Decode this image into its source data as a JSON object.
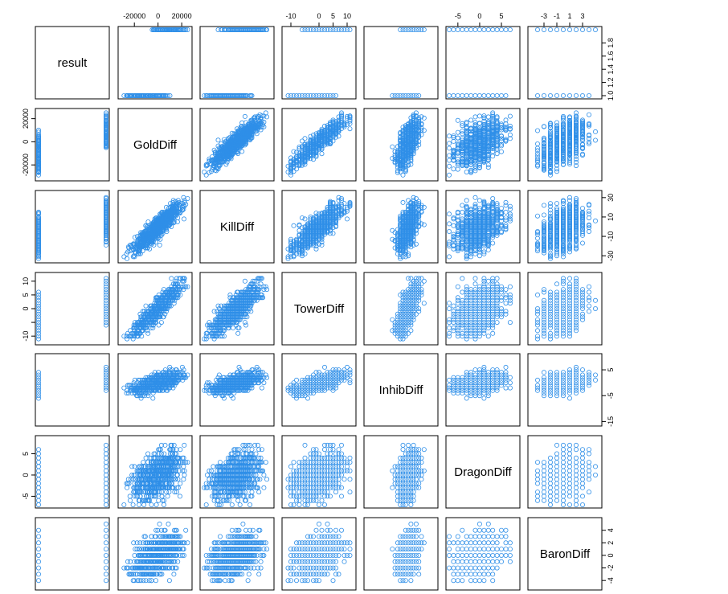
{
  "chart_data": {
    "type": "scatter",
    "subtype": "scatterplot-matrix",
    "marker": "open-circle",
    "point_color": "#2f8fe8",
    "variables": [
      {
        "name": "result",
        "range": [
          1,
          2
        ],
        "ticks": [
          1.0,
          1.2,
          1.4,
          1.6,
          1.8
        ],
        "tick_labels": [
          "1.0",
          "1.2",
          "1.4",
          "1.6",
          "1.8"
        ],
        "discrete": true
      },
      {
        "name": "GoldDiff",
        "range": [
          -31000,
          26000
        ],
        "ticks": [
          -20000,
          0,
          20000
        ],
        "tick_labels": [
          "-20000",
          "0",
          "20000"
        ],
        "discrete": false
      },
      {
        "name": "KillDiff",
        "range": [
          -34,
          34
        ],
        "ticks": [
          -30,
          -10,
          10,
          30
        ],
        "tick_labels": [
          "-30",
          "-10",
          "10",
          "30"
        ],
        "discrete": false
      },
      {
        "name": "TowerDiff",
        "range": [
          -12,
          12
        ],
        "ticks": [
          -10,
          -5,
          0,
          5,
          10
        ],
        "tick_labels": [
          "-10",
          "",
          "0",
          "5",
          "10"
        ],
        "discrete": false
      },
      {
        "name": "InhibDiff",
        "range": [
          -15.5,
          10
        ],
        "ticks": [
          -15,
          -5,
          5
        ],
        "tick_labels": [
          "-15",
          "-5",
          "5"
        ],
        "discrete": false
      },
      {
        "name": "DragonDiff",
        "range": [
          -7,
          8.5
        ],
        "ticks": [
          -5,
          0,
          5
        ],
        "tick_labels": [
          "-5",
          "0",
          "5"
        ],
        "discrete": false
      },
      {
        "name": "BaronDiff",
        "range": [
          -5,
          5.5
        ],
        "ticks": [
          -4,
          -2,
          0,
          2,
          4
        ],
        "tick_labels": [
          "-4",
          "-2",
          "0",
          "2",
          "4"
        ],
        "discrete": false
      }
    ],
    "top_axis_labels": [
      {
        "var": "GoldDiff",
        "ticks": [
          -20000,
          0,
          20000
        ],
        "labels": [
          "-20000",
          "0",
          "20000"
        ]
      },
      {
        "var": "TowerDiff",
        "ticks": [
          -10,
          0,
          5,
          10
        ],
        "labels": [
          "-10",
          "0",
          "5",
          "10"
        ]
      },
      {
        "var": "DragonDiff",
        "ticks": [
          -5,
          0,
          5
        ],
        "labels": [
          "-5",
          "0",
          "5"
        ]
      },
      {
        "var": "BaronDiff",
        "ticks": [
          -3,
          -1,
          1,
          3
        ],
        "labels": [
          "-3",
          "-1",
          "1",
          "3"
        ]
      }
    ],
    "bottom_axis_labels": [],
    "left_axis_labels": [
      {
        "var": "GoldDiff",
        "ticks": [
          -20000,
          0,
          20000
        ],
        "labels": [
          "-20000",
          "0",
          "20000"
        ]
      },
      {
        "var": "TowerDiff",
        "ticks": [
          -10,
          -5,
          0,
          5,
          10
        ],
        "labels": [
          "-10",
          "",
          "0",
          "5",
          "10"
        ]
      },
      {
        "var": "DragonDiff",
        "ticks": [
          -5,
          0,
          5
        ],
        "labels": [
          "-5",
          "0",
          "5"
        ]
      }
    ],
    "right_axis_labels": [
      {
        "var": "result",
        "ticks": [
          1.0,
          1.2,
          1.4,
          1.6,
          1.8
        ],
        "labels": [
          "1.0",
          "1.2",
          "1.4",
          "1.6",
          "1.8"
        ]
      },
      {
        "var": "KillDiff",
        "ticks": [
          -30,
          -10,
          10,
          30
        ],
        "labels": [
          "-30",
          "-10",
          "10",
          "30"
        ]
      },
      {
        "var": "InhibDiff",
        "ticks": [
          -15,
          -5,
          5
        ],
        "labels": [
          "-15",
          "-5",
          "5"
        ]
      },
      {
        "var": "BaronDiff",
        "ticks": [
          -4,
          -2,
          0,
          2,
          4
        ],
        "labels": [
          "-4",
          "-2",
          "0",
          "2",
          "4"
        ]
      }
    ],
    "approx_correlations": {
      "GoldDiff|KillDiff": 0.9,
      "GoldDiff|TowerDiff": 0.88,
      "GoldDiff|InhibDiff": 0.55,
      "GoldDiff|DragonDiff": 0.45,
      "GoldDiff|BaronDiff": 0.55,
      "KillDiff|TowerDiff": 0.78,
      "KillDiff|InhibDiff": 0.45,
      "KillDiff|DragonDiff": 0.4,
      "KillDiff|BaronDiff": 0.5,
      "TowerDiff|InhibDiff": 0.75,
      "TowerDiff|DragonDiff": 0.3,
      "TowerDiff|BaronDiff": 0.45,
      "InhibDiff|DragonDiff": 0.25,
      "InhibDiff|BaronDiff": 0.4,
      "DragonDiff|BaronDiff": 0.3
    },
    "grid": false,
    "legend": "none"
  }
}
